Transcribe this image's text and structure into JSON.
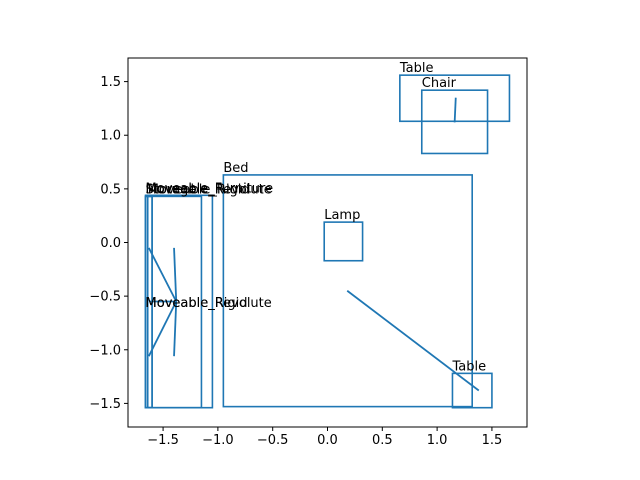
{
  "chart_data": {
    "type": "scatter",
    "title": "",
    "xlabel": "",
    "ylabel": "",
    "xlim": [
      -1.82,
      1.82
    ],
    "ylim": [
      -1.72,
      1.72
    ],
    "xticks": [
      -1.5,
      -1.0,
      -0.5,
      0.0,
      0.5,
      1.0,
      1.5
    ],
    "xtick_labels": [
      "−1.5",
      "−1.0",
      "−0.5",
      "0.0",
      "0.5",
      "1.0",
      "1.5"
    ],
    "yticks": [
      -1.5,
      -1.0,
      -0.5,
      0.0,
      0.5,
      1.0,
      1.5
    ],
    "ytick_labels": [
      "−1.5",
      "−1.0",
      "−0.5",
      "0.0",
      "0.5",
      "1.0",
      "1.5"
    ],
    "grid": false,
    "line_color": "#1f77b4",
    "rectangles": [
      {
        "label": "Bed",
        "x0": -0.95,
        "y0": -1.53,
        "x1": 1.32,
        "y1": 0.63
      },
      {
        "label": "Lamp",
        "x0": -0.03,
        "y0": -0.17,
        "x1": 0.32,
        "y1": 0.19
      },
      {
        "label": "Table",
        "x0": 0.66,
        "y0": 1.13,
        "x1": 1.66,
        "y1": 1.56
      },
      {
        "label": "Chair",
        "x0": 0.86,
        "y0": 0.83,
        "x1": 1.46,
        "y1": 1.42
      },
      {
        "label": "Table",
        "x0": 1.14,
        "y0": -1.54,
        "x1": 1.5,
        "y1": -1.22
      },
      {
        "label": "Moveable_Furniture",
        "x0": -1.66,
        "y0": -1.54,
        "x1": -1.05,
        "y1": 0.44
      },
      {
        "label": "Storage",
        "x0": -1.66,
        "y0": -1.54,
        "x1": -1.15,
        "y1": 0.43
      },
      {
        "label": "Moveable_Rigid",
        "x0": -1.64,
        "y0": -1.54,
        "x1": -1.6,
        "y1": 0.43
      },
      {
        "label": "Moveable_Revolute",
        "x0": -1.66,
        "y0": -1.54,
        "x1": -1.6,
        "y1": 0.43
      }
    ],
    "stacked_labels": [
      {
        "text": "Moveable_Revolute",
        "x": -1.66,
        "y": -0.6
      },
      {
        "text": "Moveable_Rigid",
        "x": -1.66,
        "y": -0.6
      }
    ],
    "segments": [
      {
        "x0": 0.18,
        "y0": -0.45,
        "x1": 1.38,
        "y1": -1.38
      },
      {
        "x0": 1.17,
        "y0": 1.35,
        "x1": 1.16,
        "y1": 1.12
      },
      {
        "x0": -1.63,
        "y0": -0.05,
        "x1": -1.38,
        "y1": -0.55
      },
      {
        "x0": -1.38,
        "y0": -0.55,
        "x1": -1.63,
        "y1": -1.06
      },
      {
        "x0": -1.4,
        "y0": -0.05,
        "x1": -1.38,
        "y1": -0.55
      },
      {
        "x0": -1.38,
        "y0": -0.55,
        "x1": -1.4,
        "y1": -1.06
      },
      {
        "x0": -1.62,
        "y0": -0.55,
        "x1": -1.38,
        "y1": -0.55
      }
    ]
  }
}
